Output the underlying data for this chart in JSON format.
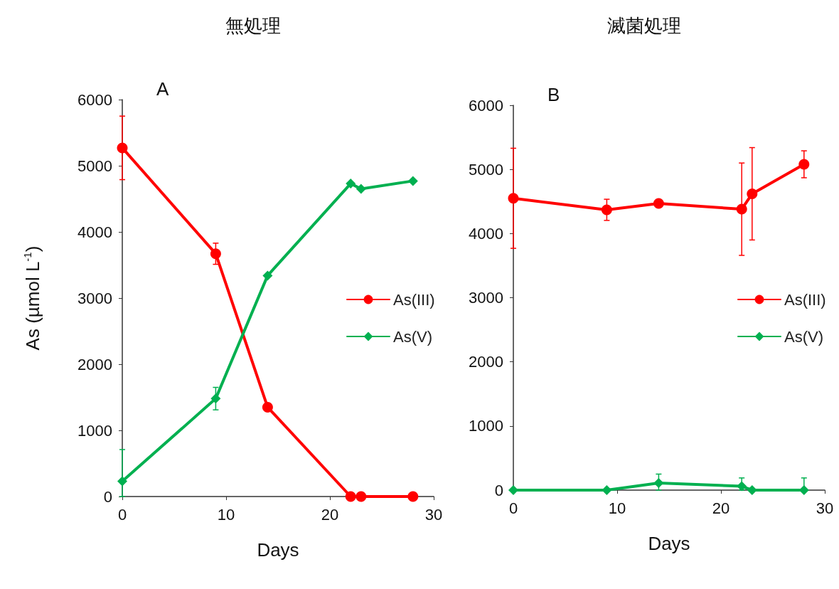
{
  "chart_data": [
    {
      "type": "line",
      "title": "無処理",
      "xlabel": "Days",
      "ylabel": "As (µmol L$^{-1}$)",
      "annotations": [
        "A"
      ],
      "xlim": [
        0,
        30
      ],
      "xticks": [
        0,
        10,
        20,
        30
      ],
      "ylim": [
        0,
        6000
      ],
      "yticks": [
        0,
        1000,
        2000,
        3000,
        4000,
        5000,
        6000
      ],
      "grid": false,
      "legend": "right",
      "line_style": "solid",
      "x": [
        0,
        9,
        14,
        22,
        23,
        28
      ],
      "series": [
        {
          "name": "As(III)",
          "color": "#ff0000",
          "marker": "circle",
          "values": [
            5270,
            3670,
            1350,
            0,
            0,
            0
          ],
          "errors": [
            480,
            160,
            null,
            null,
            null,
            null
          ]
        },
        {
          "name": "As(V)",
          "color": "#00b050",
          "marker": "diamond",
          "values": [
            230,
            1480,
            3340,
            4730,
            4650,
            4770
          ],
          "errors": [
            [
              0,
              710
            ],
            170,
            null,
            null,
            null,
            null
          ]
        }
      ]
    },
    {
      "type": "line",
      "title": "滅菌処理",
      "xlabel": "Days",
      "annotations": [
        "B"
      ],
      "xlim": [
        0,
        30
      ],
      "xticks": [
        0,
        10,
        20,
        30
      ],
      "ylim": [
        0,
        6000
      ],
      "yticks": [
        0,
        1000,
        2000,
        3000,
        4000,
        5000,
        6000
      ],
      "grid": false,
      "legend": "right",
      "line_style": "solid",
      "x": [
        0,
        9,
        14,
        22,
        23,
        28
      ],
      "series": [
        {
          "name": "As(III)",
          "color": "#ff0000",
          "marker": "circle",
          "values": [
            4550,
            4370,
            4470,
            4380,
            4620,
            5080
          ],
          "errors": [
            780,
            165,
            null,
            720,
            720,
            210
          ]
        },
        {
          "name": "As(V)",
          "color": "#00b050",
          "marker": "diamond",
          "values": [
            0,
            0,
            110,
            60,
            0,
            0
          ],
          "errors": [
            null,
            null,
            [
              0,
              250
            ],
            [
              0,
              190
            ],
            null,
            [
              0,
              190
            ]
          ]
        }
      ]
    }
  ]
}
